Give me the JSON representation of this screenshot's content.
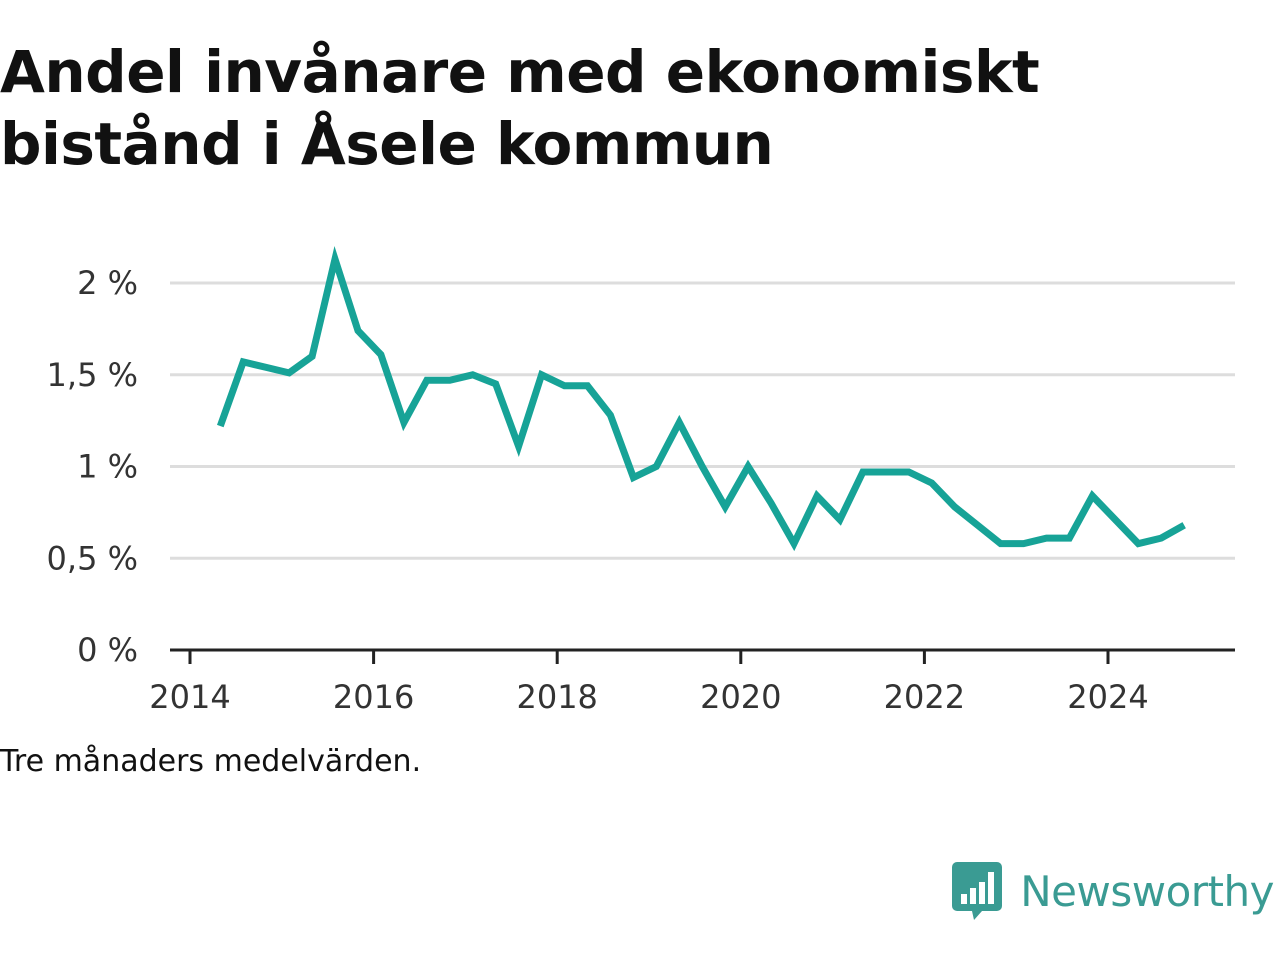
{
  "title": "Andel invånare med ekonomiskt bistånd i Åsele kommun",
  "footnote": "Tre månaders medelvärden.",
  "brand": {
    "name": "Newsworthy",
    "logo_icon": "bar-chart-speech-bubble-icon",
    "color": "#3a9b93"
  },
  "colors": {
    "line": "#17a397",
    "grid": "#dddddd",
    "axis": "#222222",
    "text": "#333333"
  },
  "chart_data": {
    "type": "line",
    "title": "Andel invånare med ekonomiskt bistånd i Åsele kommun",
    "xlabel": "",
    "ylabel": "",
    "xlim": [
      2014,
      2025.4
    ],
    "ylim": [
      0,
      2
    ],
    "grid": true,
    "x_ticks": [
      2014,
      2016,
      2018,
      2020,
      2022,
      2024
    ],
    "x_tick_labels": [
      "2014",
      "2016",
      "2018",
      "2020",
      "2022",
      "2024"
    ],
    "y_ticks": [
      0,
      0.5,
      1,
      1.5,
      2
    ],
    "y_tick_labels": [
      "0 %",
      "0,5 %",
      "1 %",
      "1,5 %",
      "2 %"
    ],
    "series": [
      {
        "x": [
          2014.33,
          2014.58,
          2014.83,
          2015.08,
          2015.33,
          2015.58,
          2015.83,
          2016.08,
          2016.33,
          2016.58,
          2016.83,
          2017.08,
          2017.33,
          2017.58,
          2017.83,
          2018.08,
          2018.33,
          2018.58,
          2018.83,
          2019.08,
          2019.33,
          2019.58,
          2019.83,
          2020.08,
          2020.33,
          2020.58,
          2020.83,
          2021.08,
          2021.33,
          2021.58,
          2021.83,
          2022.08,
          2022.33,
          2022.58,
          2022.83,
          2023.08,
          2023.33,
          2023.58,
          2023.83,
          2024.08,
          2024.33,
          2024.58,
          2024.83
        ],
        "values": [
          1.22,
          1.57,
          1.54,
          1.51,
          1.6,
          2.13,
          1.74,
          1.61,
          1.24,
          1.47,
          1.47,
          1.5,
          1.45,
          1.11,
          1.5,
          1.44,
          1.44,
          1.28,
          0.94,
          1.0,
          1.24,
          1.0,
          0.78,
          1.0,
          0.8,
          0.58,
          0.84,
          0.71,
          0.97,
          0.97,
          0.97,
          0.91,
          0.78,
          0.68,
          0.58,
          0.58,
          0.61,
          0.61,
          0.84,
          0.71,
          0.58,
          0.61,
          0.68
        ]
      }
    ]
  }
}
